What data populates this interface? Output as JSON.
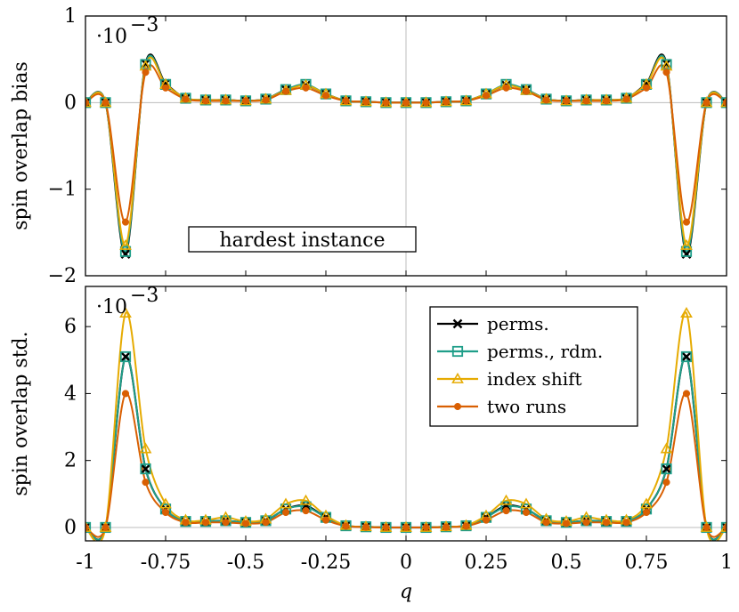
{
  "chart_data": [
    {
      "type": "line",
      "ylabel": "spin overlap bias",
      "exponent_label": "·10",
      "exponent_power": "−3",
      "annotation": "hardest instance",
      "ylim": [
        -2,
        1
      ],
      "yticks": [
        1,
        0,
        -1,
        -2
      ],
      "ytick_labels": [
        "1",
        "0",
        "−1",
        "−2"
      ],
      "xlim": [
        -1,
        1
      ],
      "show_xtick_labels": false,
      "reference_lines": "x=0, y=0",
      "series": [
        {
          "name": "perms.",
          "color": "#000000",
          "marker": "x",
          "x": [
            -1,
            -0.9375,
            -0.875,
            -0.8125,
            -0.75,
            -0.6875,
            -0.625,
            -0.5625,
            -0.5,
            -0.4375,
            -0.375,
            -0.3125,
            -0.25,
            -0.1875,
            -0.125,
            -0.0625,
            0,
            0.0625,
            0.125,
            0.1875,
            0.25,
            0.3125,
            0.375,
            0.4375,
            0.5,
            0.5625,
            0.625,
            0.6875,
            0.75,
            0.8125,
            0.875,
            0.9375,
            1
          ],
          "y": [
            0,
            0,
            -1.75,
            0.45,
            0.22,
            0.05,
            0.03,
            0.03,
            0.02,
            0.04,
            0.15,
            0.2,
            0.1,
            0.02,
            0.01,
            0,
            0,
            0,
            0.01,
            0.02,
            0.1,
            0.2,
            0.15,
            0.04,
            0.02,
            0.03,
            0.03,
            0.05,
            0.22,
            0.45,
            -1.75,
            0,
            0
          ]
        },
        {
          "name": "perms., rdm.",
          "color": "#1f9e89",
          "marker": "square",
          "x": [
            -1,
            -0.9375,
            -0.875,
            -0.8125,
            -0.75,
            -0.6875,
            -0.625,
            -0.5625,
            -0.5,
            -0.4375,
            -0.375,
            -0.3125,
            -0.25,
            -0.1875,
            -0.125,
            -0.0625,
            0,
            0.0625,
            0.125,
            0.1875,
            0.25,
            0.3125,
            0.375,
            0.4375,
            0.5,
            0.5625,
            0.625,
            0.6875,
            0.75,
            0.8125,
            0.875,
            0.9375,
            1
          ],
          "y": [
            0,
            0,
            -1.72,
            0.44,
            0.21,
            0.05,
            0.03,
            0.03,
            0.02,
            0.04,
            0.15,
            0.21,
            0.1,
            0.02,
            0.01,
            0,
            0,
            0,
            0.01,
            0.02,
            0.1,
            0.21,
            0.15,
            0.04,
            0.02,
            0.03,
            0.03,
            0.05,
            0.21,
            0.44,
            -1.72,
            0,
            0
          ]
        },
        {
          "name": "index shift",
          "color": "#e6ab02",
          "marker": "triangle",
          "x": [
            -1,
            -0.9375,
            -0.875,
            -0.8125,
            -0.75,
            -0.6875,
            -0.625,
            -0.5625,
            -0.5,
            -0.4375,
            -0.375,
            -0.3125,
            -0.25,
            -0.1875,
            -0.125,
            -0.0625,
            0,
            0.0625,
            0.125,
            0.1875,
            0.25,
            0.3125,
            0.375,
            0.4375,
            0.5,
            0.5625,
            0.625,
            0.6875,
            0.75,
            0.8125,
            0.875,
            0.9375,
            1
          ],
          "y": [
            0,
            0,
            -1.65,
            0.42,
            0.21,
            0.05,
            0.03,
            0.03,
            0.02,
            0.04,
            0.14,
            0.2,
            0.1,
            0.02,
            0.01,
            0,
            0,
            0,
            0.01,
            0.02,
            0.1,
            0.2,
            0.14,
            0.04,
            0.02,
            0.03,
            0.03,
            0.05,
            0.21,
            0.42,
            -1.65,
            0,
            0
          ]
        },
        {
          "name": "two runs",
          "color": "#d95f02",
          "marker": "circle",
          "x": [
            -1,
            -0.9375,
            -0.875,
            -0.8125,
            -0.75,
            -0.6875,
            -0.625,
            -0.5625,
            -0.5,
            -0.4375,
            -0.375,
            -0.3125,
            -0.25,
            -0.1875,
            -0.125,
            -0.0625,
            0,
            0.0625,
            0.125,
            0.1875,
            0.25,
            0.3125,
            0.375,
            0.4375,
            0.5,
            0.5625,
            0.625,
            0.6875,
            0.75,
            0.8125,
            0.875,
            0.9375,
            1
          ],
          "y": [
            0,
            0,
            -1.38,
            0.35,
            0.17,
            0.04,
            0.02,
            0.02,
            0.02,
            0.03,
            0.13,
            0.17,
            0.08,
            0.02,
            0.01,
            0,
            0,
            0,
            0.01,
            0.02,
            0.08,
            0.17,
            0.13,
            0.03,
            0.02,
            0.02,
            0.02,
            0.04,
            0.17,
            0.35,
            -1.38,
            0,
            0
          ]
        }
      ]
    },
    {
      "type": "line",
      "ylabel": "spin overlap std.",
      "xlabel": "q",
      "exponent_label": "·10",
      "exponent_power": "−3",
      "ylim": [
        -0.4,
        7.2
      ],
      "yticks": [
        0,
        2,
        4,
        6
      ],
      "ytick_labels": [
        "0",
        "2",
        "4",
        "6"
      ],
      "xlim": [
        -1,
        1
      ],
      "xticks": [
        -1,
        -0.75,
        -0.5,
        -0.25,
        0,
        0.25,
        0.5,
        0.75,
        1
      ],
      "xtick_labels": [
        "-1",
        "-0.75",
        "-0.5",
        "-0.25",
        "0",
        "0.25",
        "0.5",
        "0.75",
        "1"
      ],
      "reference_lines": "x=0, y=0",
      "legend_position": "top-right",
      "series": [
        {
          "name": "perms.",
          "color": "#000000",
          "marker": "x",
          "x": [
            -1,
            -0.9375,
            -0.875,
            -0.8125,
            -0.75,
            -0.6875,
            -0.625,
            -0.5625,
            -0.5,
            -0.4375,
            -0.375,
            -0.3125,
            -0.25,
            -0.1875,
            -0.125,
            -0.0625,
            0,
            0.0625,
            0.125,
            0.1875,
            0.25,
            0.3125,
            0.375,
            0.4375,
            0.5,
            0.5625,
            0.625,
            0.6875,
            0.75,
            0.8125,
            0.875,
            0.9375,
            1
          ],
          "y": [
            0,
            0,
            5.1,
            1.75,
            0.55,
            0.18,
            0.18,
            0.2,
            0.15,
            0.2,
            0.55,
            0.65,
            0.3,
            0.05,
            0.02,
            0,
            0,
            0,
            0.02,
            0.05,
            0.3,
            0.65,
            0.55,
            0.2,
            0.15,
            0.2,
            0.18,
            0.18,
            0.55,
            1.75,
            5.1,
            0,
            0
          ]
        },
        {
          "name": "perms., rdm.",
          "color": "#1f9e89",
          "marker": "square",
          "x": [
            -1,
            -0.9375,
            -0.875,
            -0.8125,
            -0.75,
            -0.6875,
            -0.625,
            -0.5625,
            -0.5,
            -0.4375,
            -0.375,
            -0.3125,
            -0.25,
            -0.1875,
            -0.125,
            -0.0625,
            0,
            0.0625,
            0.125,
            0.1875,
            0.25,
            0.3125,
            0.375,
            0.4375,
            0.5,
            0.5625,
            0.625,
            0.6875,
            0.75,
            0.8125,
            0.875,
            0.9375,
            1
          ],
          "y": [
            0,
            0,
            5.1,
            1.75,
            0.55,
            0.18,
            0.18,
            0.2,
            0.15,
            0.2,
            0.55,
            0.62,
            0.3,
            0.05,
            0.02,
            0,
            0,
            0,
            0.02,
            0.05,
            0.3,
            0.62,
            0.55,
            0.2,
            0.15,
            0.2,
            0.18,
            0.18,
            0.55,
            1.75,
            5.1,
            0,
            0
          ]
        },
        {
          "name": "index shift",
          "color": "#e6ab02",
          "marker": "triangle",
          "x": [
            -1,
            -0.9375,
            -0.875,
            -0.8125,
            -0.75,
            -0.6875,
            -0.625,
            -0.5625,
            -0.5,
            -0.4375,
            -0.375,
            -0.3125,
            -0.25,
            -0.1875,
            -0.125,
            -0.0625,
            0,
            0.0625,
            0.125,
            0.1875,
            0.25,
            0.3125,
            0.375,
            0.4375,
            0.5,
            0.5625,
            0.625,
            0.6875,
            0.75,
            0.8125,
            0.875,
            0.9375,
            1
          ],
          "y": [
            0,
            0,
            6.4,
            2.35,
            0.7,
            0.22,
            0.22,
            0.3,
            0.18,
            0.25,
            0.7,
            0.8,
            0.35,
            0.06,
            0.02,
            0,
            0,
            0,
            0.02,
            0.06,
            0.35,
            0.8,
            0.7,
            0.25,
            0.18,
            0.3,
            0.22,
            0.22,
            0.7,
            2.35,
            6.4,
            0,
            0
          ]
        },
        {
          "name": "two runs",
          "color": "#d95f02",
          "marker": "circle",
          "x": [
            -1,
            -0.9375,
            -0.875,
            -0.8125,
            -0.75,
            -0.6875,
            -0.625,
            -0.5625,
            -0.5,
            -0.4375,
            -0.375,
            -0.3125,
            -0.25,
            -0.1875,
            -0.125,
            -0.0625,
            0,
            0.0625,
            0.125,
            0.1875,
            0.25,
            0.3125,
            0.375,
            0.4375,
            0.5,
            0.5625,
            0.625,
            0.6875,
            0.75,
            0.8125,
            0.875,
            0.9375,
            1
          ],
          "y": [
            0,
            0,
            4.0,
            1.35,
            0.45,
            0.15,
            0.15,
            0.15,
            0.12,
            0.15,
            0.45,
            0.5,
            0.22,
            0.04,
            0.01,
            0,
            0,
            0,
            0.01,
            0.04,
            0.22,
            0.5,
            0.45,
            0.15,
            0.12,
            0.15,
            0.15,
            0.15,
            0.45,
            1.35,
            4.0,
            0,
            0
          ]
        }
      ]
    }
  ]
}
